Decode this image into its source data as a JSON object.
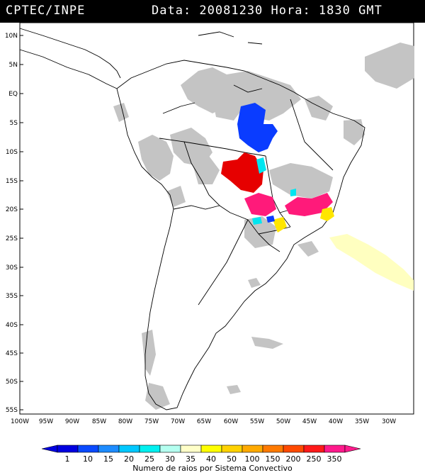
{
  "header": {
    "source": "CPTEC/INPE",
    "info": "Data: 20081230 Hora: 1830 GMT"
  },
  "map": {
    "lat_labels": [
      "10N",
      "5N",
      "EQ",
      "5S",
      "10S",
      "15S",
      "20S",
      "25S",
      "30S",
      "35S",
      "40S",
      "45S",
      "50S",
      "55S"
    ],
    "lon_labels": [
      "100W",
      "95W",
      "90W",
      "85W",
      "80W",
      "75W",
      "70W",
      "65W",
      "60W",
      "55W",
      "50W",
      "45W",
      "40W",
      "35W",
      "30W"
    ]
  },
  "colorbar": {
    "ticks": [
      "1",
      "10",
      "15",
      "20",
      "25",
      "30",
      "35",
      "40",
      "50",
      "100",
      "150",
      "200",
      "250",
      "350"
    ],
    "label": "Numero de raios por Sistema Convectivo",
    "colors": [
      "#0000e0",
      "#0a4aff",
      "#1e8cff",
      "#00c8ff",
      "#00f0f0",
      "#b4fff0",
      "#ffffc8",
      "#ffff00",
      "#ffd200",
      "#ffaa00",
      "#ff7a00",
      "#ff4a00",
      "#ff1a1a",
      "#ff1a8c"
    ]
  },
  "legend_colors": {
    "cloud": "#bdbdbd",
    "blue": "#0a3cff",
    "red": "#e60000",
    "magenta": "#ff1a7a",
    "cyan": "#00e6f0",
    "yellow": "#ffe600",
    "pale_yellow": "#ffffc0"
  }
}
